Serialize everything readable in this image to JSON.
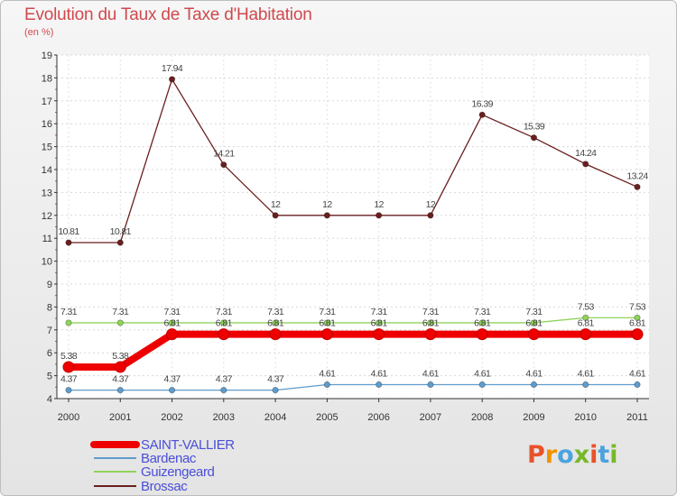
{
  "title": "Evolution du Taux de Taxe d'Habitation",
  "subtitle": "(en %)",
  "logo": {
    "text": "Proxiti",
    "colors": [
      "#e8522a",
      "#f29200",
      "#4aa3df",
      "#77b82a",
      "#e8522a",
      "#4aa3df",
      "#77b82a"
    ]
  },
  "chart_data": {
    "type": "line",
    "title": "Evolution du Taux de Taxe d'Habitation",
    "ylabel": "(en %)",
    "x": [
      2000,
      2001,
      2002,
      2003,
      2004,
      2005,
      2006,
      2007,
      2008,
      2009,
      2010,
      2011
    ],
    "xtick_labels": [
      "2000",
      "2001",
      "2002",
      "2003",
      "2004",
      "2005",
      "2006",
      "2007",
      "2008",
      "2009",
      "2010",
      "2011"
    ],
    "ylim": [
      4,
      19
    ],
    "ytick_labels": [
      "4",
      "5",
      "6",
      "7",
      "8",
      "9",
      "10",
      "11",
      "12",
      "13",
      "14",
      "15",
      "16",
      "17",
      "18",
      "19"
    ],
    "series": [
      {
        "name": "SAINT-VALLIER",
        "color": "#ee0000",
        "values": [
          5.38,
          5.38,
          6.81,
          6.81,
          6.81,
          6.81,
          6.81,
          6.81,
          6.81,
          6.81,
          6.81,
          6.81
        ],
        "labels": [
          "5.38",
          "5.38",
          "6.81",
          "6.81",
          "6.81",
          "6.81",
          "6.81",
          "6.81",
          "6.81",
          "6.81",
          "6.81",
          "6.81"
        ]
      },
      {
        "name": "Bardenac",
        "color": "#5f9ccc",
        "values": [
          4.37,
          4.37,
          4.37,
          4.37,
          4.37,
          4.61,
          4.61,
          4.61,
          4.61,
          4.61,
          4.61,
          4.61
        ],
        "labels": [
          "4.37",
          "4.37",
          "4.37",
          "4.37",
          "4.37",
          "4.61",
          "4.61",
          "4.61",
          "4.61",
          "4.61",
          "4.61",
          "4.61"
        ]
      },
      {
        "name": "Guizengeard",
        "color": "#8fd45a",
        "values": [
          7.31,
          7.31,
          7.31,
          7.31,
          7.31,
          7.31,
          7.31,
          7.31,
          7.31,
          7.31,
          7.53,
          7.53
        ],
        "labels": [
          "7.31",
          "7.31",
          "7.31",
          "7.31",
          "7.31",
          "7.31",
          "7.31",
          "7.31",
          "7.31",
          "7.31",
          "7.53",
          "7.53"
        ]
      },
      {
        "name": "Brossac",
        "color": "#6b1f1f",
        "values": [
          10.81,
          10.81,
          17.94,
          14.21,
          12,
          12,
          12,
          12,
          16.39,
          15.39,
          14.24,
          13.24
        ],
        "labels": [
          "10.81",
          "10.81",
          "17.94",
          "14.21",
          "12",
          "12",
          "12",
          "12",
          "16.39",
          "15.39",
          "14.24",
          "13.24"
        ]
      }
    ],
    "legend_position": "bottom-left"
  }
}
